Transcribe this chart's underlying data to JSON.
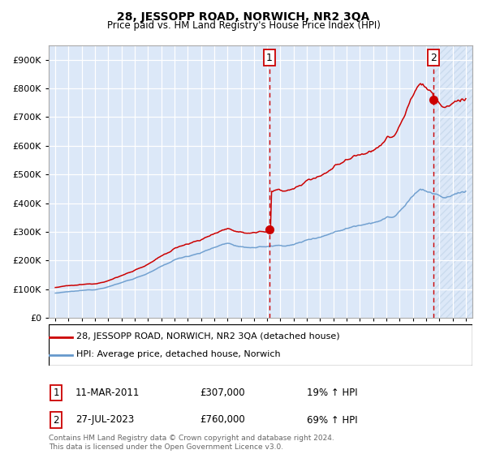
{
  "title": "28, JESSOPP ROAD, NORWICH, NR2 3QA",
  "subtitle": "Price paid vs. HM Land Registry's House Price Index (HPI)",
  "legend_label_red": "28, JESSOPP ROAD, NORWICH, NR2 3QA (detached house)",
  "legend_label_blue": "HPI: Average price, detached house, Norwich",
  "annotation1_label": "1",
  "annotation1_date": "11-MAR-2011",
  "annotation1_price": "£307,000",
  "annotation1_hpi": "19% ↑ HPI",
  "annotation1_year": 2011.17,
  "annotation1_value": 307000,
  "annotation2_label": "2",
  "annotation2_date": "27-JUL-2023",
  "annotation2_price": "£760,000",
  "annotation2_hpi": "69% ↑ HPI",
  "annotation2_year": 2023.57,
  "annotation2_value": 760000,
  "footer": "Contains HM Land Registry data © Crown copyright and database right 2024.\nThis data is licensed under the Open Government Licence v3.0.",
  "ylim": [
    0,
    950000
  ],
  "yticks": [
    0,
    100000,
    200000,
    300000,
    400000,
    500000,
    600000,
    700000,
    800000,
    900000
  ],
  "xlim": [
    1994.5,
    2026.5
  ],
  "red_color": "#cc0000",
  "blue_color": "#6699cc",
  "grid_color": "#cccccc",
  "bg_color": "#dce8f8",
  "hatch_color": "#c8d8e8"
}
